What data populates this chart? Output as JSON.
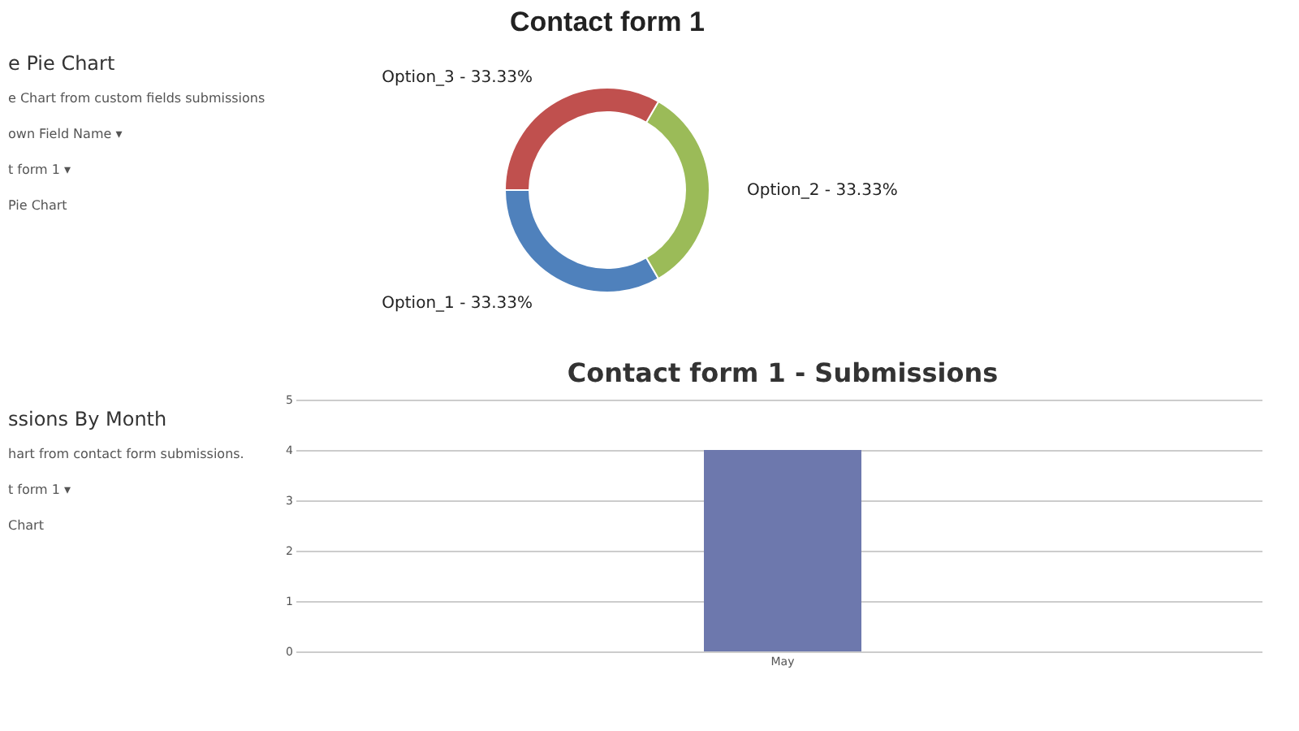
{
  "chart_data": [
    {
      "type": "donut",
      "title": "Contact form 1",
      "categories": [
        "Option_1",
        "Option_2",
        "Option_3"
      ],
      "values": [
        33.33,
        33.33,
        33.33
      ],
      "colors": [
        "#4f81bc",
        "#9bbb58",
        "#c0504e"
      ],
      "value_labels": [
        "33.33%",
        "33.33%",
        "33.33%"
      ],
      "annotations": [
        "e Pie Chart",
        "e Chart from custom fields submissions",
        "own Field Name ▾",
        "t form 1 ▾",
        "Pie Chart"
      ]
    },
    {
      "type": "bar",
      "title": "Contact form 1 - Submissions",
      "categories": [
        "May"
      ],
      "values": [
        4
      ],
      "color": "#6d78ad",
      "ylim": [
        0,
        5
      ],
      "yticks": [
        0,
        1,
        2,
        3,
        4,
        5
      ],
      "grid": "y",
      "annotations": [
        "ssions By Month",
        "hart from contact form submissions.",
        "t form 1 ▾",
        "Chart"
      ]
    }
  ]
}
